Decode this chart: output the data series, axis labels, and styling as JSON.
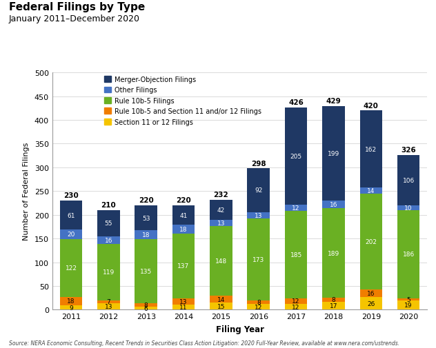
{
  "title": "Federal Filings by Type",
  "subtitle": "January 2011–December 2020",
  "xlabel": "Filing Year",
  "ylabel": "Number of Federal Filings",
  "source": "Source: NERA Economic Consulting, Recent Trends in Securities Class Action Litigation: 2020 Full-Year Review, available at www.nera.com/ustrends.",
  "years": [
    2011,
    2012,
    2013,
    2014,
    2015,
    2016,
    2017,
    2018,
    2019,
    2020
  ],
  "totals": [
    230,
    210,
    220,
    220,
    232,
    298,
    426,
    429,
    420,
    326
  ],
  "series": {
    "Section 11 or 12 Filings": {
      "values": [
        9,
        13,
        6,
        11,
        15,
        12,
        12,
        17,
        26,
        19
      ],
      "color": "#F5C400"
    },
    "Rule 10b-5 and Section 11 and/or 12 Filings": {
      "values": [
        18,
        7,
        8,
        13,
        14,
        8,
        12,
        8,
        16,
        5
      ],
      "color": "#F07D00"
    },
    "Rule 10b-5 Filings": {
      "values": [
        122,
        119,
        135,
        137,
        148,
        173,
        185,
        189,
        202,
        186
      ],
      "color": "#6AB023"
    },
    "Other Filings": {
      "values": [
        20,
        16,
        18,
        18,
        13,
        13,
        12,
        16,
        14,
        10
      ],
      "color": "#4472C4"
    },
    "Merger-Objection Filings": {
      "values": [
        61,
        55,
        53,
        41,
        42,
        92,
        205,
        199,
        162,
        106
      ],
      "color": "#1F3864"
    }
  },
  "ylim": [
    0,
    500
  ],
  "yticks": [
    0,
    50,
    100,
    150,
    200,
    250,
    300,
    350,
    400,
    450,
    500
  ],
  "background_color": "#FFFFFF",
  "legend_order": [
    "Merger-Objection Filings",
    "Other Filings",
    "Rule 10b-5 Filings",
    "Rule 10b-5 and Section 11 and/or 12 Filings",
    "Section 11 or 12 Filings"
  ],
  "stack_order": [
    "Section 11 or 12 Filings",
    "Rule 10b-5 and Section 11 and/or 12 Filings",
    "Rule 10b-5 Filings",
    "Other Filings",
    "Merger-Objection Filings"
  ],
  "label_colors": {
    "Section 11 or 12 Filings": "black",
    "Rule 10b-5 and Section 11 and/or 12 Filings": "black",
    "Rule 10b-5 Filings": "white",
    "Other Filings": "white",
    "Merger-Objection Filings": "white"
  },
  "bar_width": 0.6,
  "label_fontsize": 6.5,
  "total_fontsize": 7.5,
  "tick_fontsize": 8,
  "axis_label_fontsize": 8.5,
  "legend_fontsize": 7,
  "title_fontsize": 11,
  "subtitle_fontsize": 9
}
